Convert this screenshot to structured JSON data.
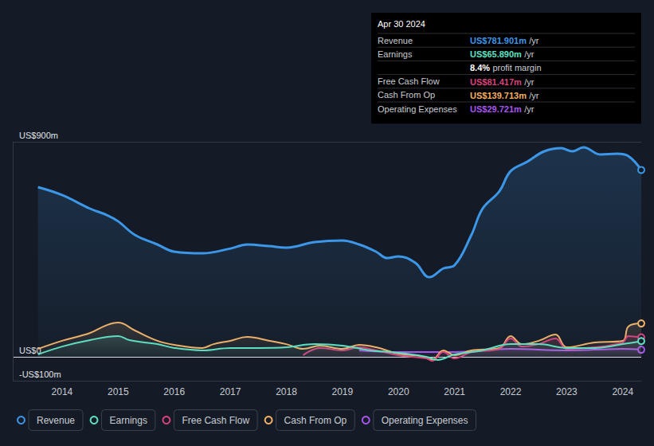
{
  "chart_data": {
    "type": "line",
    "xlim": [
      2013.12,
      2024.33
    ],
    "xticks": [
      2014,
      2015,
      2016,
      2017,
      2018,
      2019,
      2020,
      2021,
      2022,
      2023,
      2024
    ],
    "ylim": [
      -100,
      900
    ],
    "yticks": [
      {
        "value": -100,
        "label": "-US$100m"
      },
      {
        "value": 0,
        "label": "US$0"
      },
      {
        "value": 900,
        "label": "US$900m"
      }
    ],
    "grid": true,
    "legend": "bottom-left",
    "series": [
      {
        "name": "Revenue",
        "color": "#3c97e8",
        "x": [
          2013.57,
          2014.0,
          2014.5,
          2014.8,
          2015.0,
          2015.3,
          2015.7,
          2016.0,
          2016.5,
          2017.0,
          2017.3,
          2017.7,
          2018.0,
          2018.5,
          2019.0,
          2019.3,
          2019.6,
          2019.8,
          2020.0,
          2020.3,
          2020.55,
          2020.8,
          2021.0,
          2021.3,
          2021.5,
          2021.8,
          2022.0,
          2022.3,
          2022.6,
          2022.9,
          2023.1,
          2023.3,
          2023.6,
          2023.9,
          2024.1,
          2024.33
        ],
        "values": [
          710,
          677,
          620,
          593,
          567,
          510,
          470,
          440,
          433,
          453,
          470,
          463,
          457,
          480,
          487,
          470,
          440,
          413,
          420,
          393,
          333,
          370,
          383,
          510,
          620,
          693,
          777,
          817,
          860,
          873,
          860,
          877,
          847,
          850,
          840,
          781.901
        ]
      },
      {
        "name": "Earnings",
        "color": "#5fe0c0",
        "x": [
          2013.57,
          2014.0,
          2014.5,
          2015.0,
          2015.2,
          2015.7,
          2016.0,
          2016.5,
          2017.0,
          2017.5,
          2018.0,
          2018.5,
          2019.0,
          2019.5,
          2020.0,
          2020.5,
          2020.7,
          2021.0,
          2021.5,
          2022.0,
          2022.5,
          2023.0,
          2023.5,
          2024.0,
          2024.33
        ],
        "values": [
          10,
          43,
          70,
          87,
          70,
          53,
          37,
          27,
          37,
          37,
          40,
          53,
          47,
          27,
          17,
          0,
          -13,
          10,
          27,
          53,
          53,
          37,
          37,
          53,
          65.89
        ]
      },
      {
        "name": "Free Cash Flow",
        "color": "#d8437c",
        "x": [
          2018.3,
          2018.6,
          2019.0,
          2019.3,
          2019.6,
          2020.0,
          2020.5,
          2020.6,
          2020.8,
          2021.0,
          2021.3,
          2021.8,
          2022.0,
          2022.2,
          2022.5,
          2022.8,
          2023.0,
          2023.5,
          2024.0,
          2024.1,
          2024.33
        ],
        "values": [
          7,
          37,
          27,
          40,
          27,
          7,
          -7,
          -17,
          20,
          -7,
          20,
          33,
          77,
          43,
          53,
          77,
          33,
          40,
          60,
          87,
          81.417
        ]
      },
      {
        "name": "Cash From Op",
        "color": "#f2b165",
        "x": [
          2013.57,
          2014.0,
          2014.5,
          2014.8,
          2015.0,
          2015.3,
          2015.7,
          2016.0,
          2016.5,
          2016.7,
          2017.0,
          2017.3,
          2017.7,
          2018.0,
          2018.3,
          2018.6,
          2019.0,
          2019.3,
          2019.6,
          2020.0,
          2020.4,
          2020.6,
          2020.8,
          2021.0,
          2021.3,
          2021.8,
          2022.0,
          2022.2,
          2022.5,
          2022.8,
          2023.0,
          2023.5,
          2024.0,
          2024.1,
          2024.33
        ],
        "values": [
          33,
          67,
          100,
          133,
          143,
          110,
          67,
          50,
          37,
          53,
          67,
          83,
          67,
          53,
          33,
          47,
          33,
          50,
          40,
          13,
          3,
          -13,
          27,
          7,
          27,
          37,
          87,
          53,
          67,
          93,
          40,
          60,
          67,
          127,
          139.713
        ]
      },
      {
        "name": "Operating Expenses",
        "color": "#a855f0",
        "x": [
          2019.3,
          2020.0,
          2021.0,
          2022.0,
          2023.0,
          2024.0,
          2024.33
        ],
        "values": [
          27,
          20,
          20,
          33,
          27,
          33,
          29.721
        ]
      }
    ],
    "annotation": {
      "title": "Apr 30 2024",
      "rows": [
        {
          "label": "Revenue",
          "value": "US$781.901m",
          "unit": "/yr",
          "color": "#3c97e8"
        },
        {
          "label": "Earnings",
          "value": "US$65.890m",
          "unit": "/yr",
          "color": "#5fe0c0"
        },
        {
          "value": "8.4%",
          "unit": "profit margin",
          "color": "#ffffff"
        },
        {
          "label": "Free Cash Flow",
          "value": "US$81.417m",
          "unit": "/yr",
          "color": "#d8437c"
        },
        {
          "label": "Cash From Op",
          "value": "US$139.713m",
          "unit": "/yr",
          "color": "#f2b165"
        },
        {
          "label": "Operating Expenses",
          "value": "US$29.721m",
          "unit": "/yr",
          "color": "#a855f0"
        }
      ]
    }
  }
}
